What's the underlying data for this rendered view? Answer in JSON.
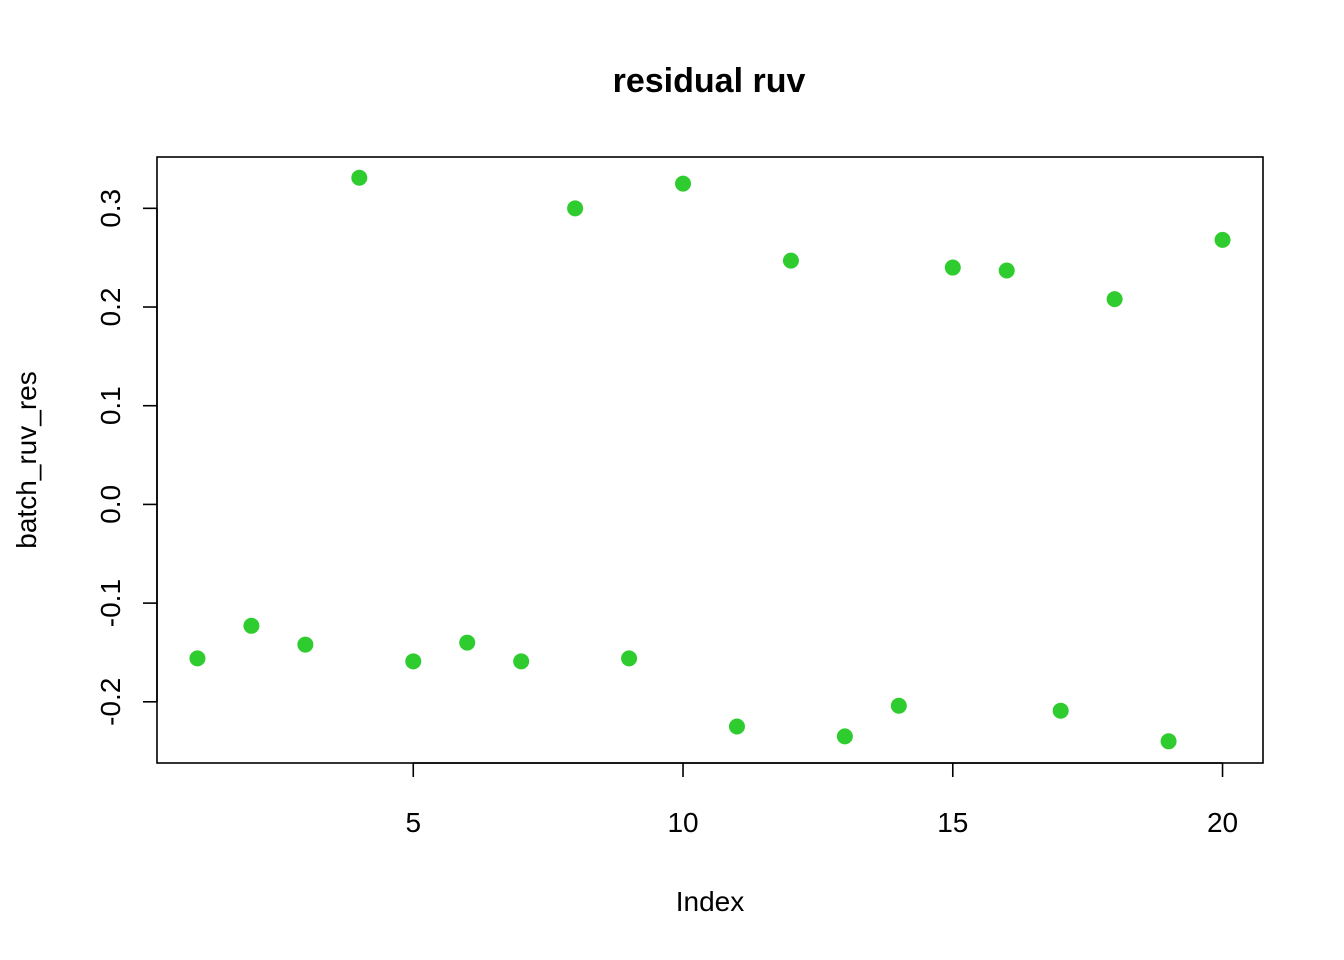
{
  "chart_data": {
    "type": "scatter",
    "title": "residual ruv",
    "xlabel": "Index",
    "ylabel": "batch_ruv_res",
    "xlim": [
      0.25,
      20.75
    ],
    "ylim": [
      -0.262,
      0.352
    ],
    "x_ticks": [
      5,
      10,
      15,
      20
    ],
    "y_ticks": [
      -0.2,
      -0.1,
      0.0,
      0.1,
      0.2,
      0.3
    ],
    "x_tick_labels": [
      "5",
      "10",
      "15",
      "20"
    ],
    "y_tick_labels": [
      "-0.2",
      "-0.1",
      "0.0",
      "0.1",
      "0.2",
      "0.3"
    ],
    "grid": false,
    "legend": "none",
    "point_color": "#2ECC2E",
    "series": [
      {
        "x": [
          1,
          2,
          3,
          4,
          5,
          6,
          7,
          8,
          9,
          10,
          11,
          12,
          13,
          14,
          15,
          16,
          17,
          18,
          19,
          20
        ],
        "y": [
          -0.156,
          -0.123,
          -0.142,
          0.331,
          -0.159,
          -0.14,
          -0.159,
          0.3,
          -0.156,
          0.325,
          -0.225,
          0.247,
          -0.235,
          -0.204,
          0.24,
          0.237,
          -0.209,
          0.208,
          -0.24,
          0.268
        ]
      }
    ]
  }
}
